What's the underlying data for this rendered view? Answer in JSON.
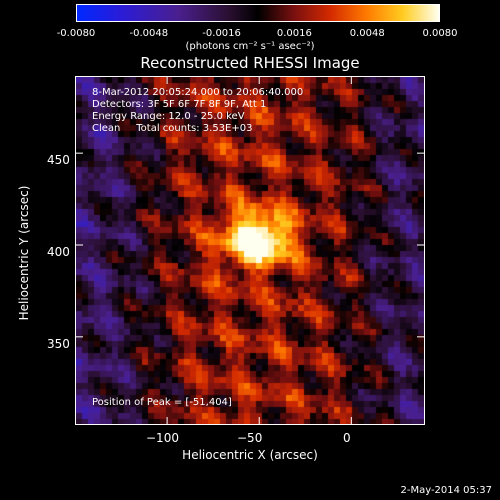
{
  "colorbar": {
    "ticks": [
      "-0.0080",
      "-0.0048",
      "-0.0016",
      "0.0016",
      "0.0048",
      "0.0080"
    ],
    "unit": "(photons cm⁻² s⁻¹ asec⁻²)",
    "range": [
      -0.008,
      0.008
    ]
  },
  "chart_data": {
    "type": "heatmap",
    "title": "Reconstructed RHESSI Image",
    "xlabel": "Heliocentric X (arcsec)",
    "ylabel": "Heliocentric Y (arcsec)",
    "xlim": [
      -150,
      40
    ],
    "ylim": [
      302,
      492
    ],
    "xticks": [
      -100,
      -50,
      0
    ],
    "xtick_labels": [
      "−100",
      "−50",
      "0"
    ],
    "yticks": [
      350,
      400,
      450
    ],
    "ytick_labels": [
      "350",
      "400",
      "450"
    ],
    "peak": {
      "x": -51,
      "y": 404,
      "value": 0.008
    },
    "source": {
      "sx": 13,
      "sy": 10
    }
  },
  "info_lines": [
    "8-Mar-2012 20:05:24.000 to 20:06:40.000",
    "Detectors: 3F 5F 6F 7F 8F 9F, Att 1",
    "Energy Range: 12.0 - 25.0 keV",
    "Clean     Total counts: 3.53E+03"
  ],
  "peak_label": "Position of Peak = [-51,404]",
  "footer": "2-May-2014 05:37"
}
